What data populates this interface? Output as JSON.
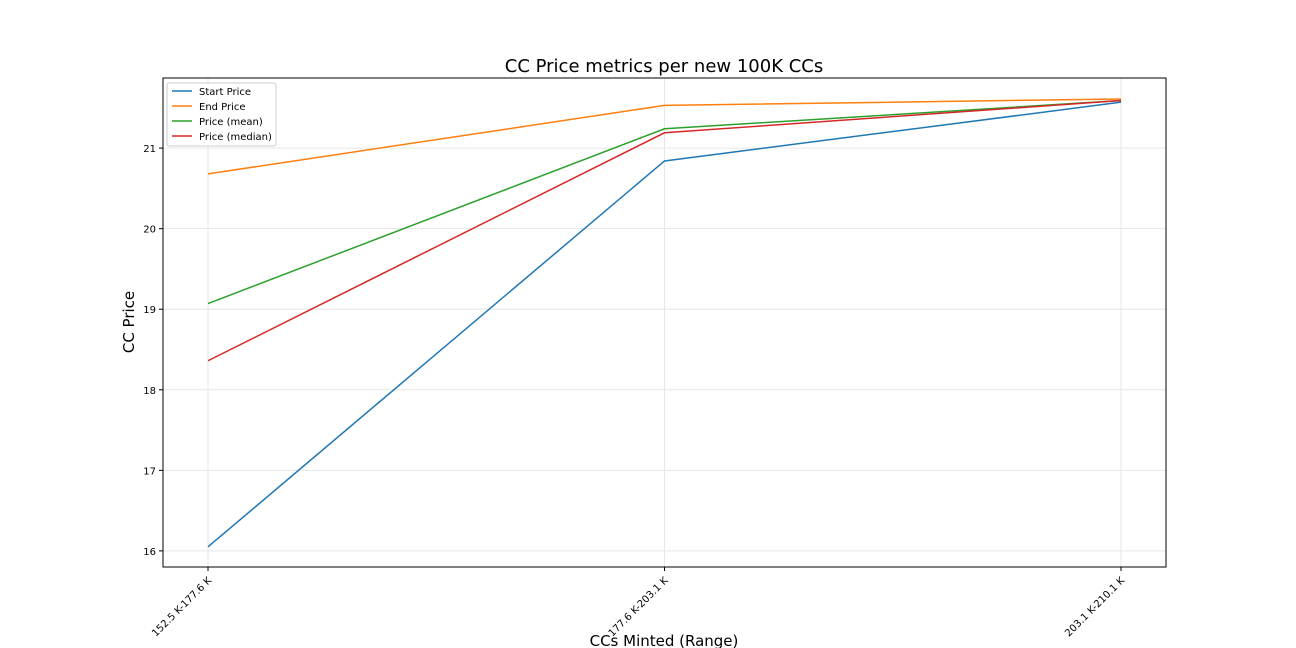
{
  "chart_data": {
    "type": "line",
    "title": "CC Price metrics per new 100K CCs",
    "xlabel": "CCs Minted (Range)",
    "ylabel": "CC Price",
    "categories": [
      "152.5 K-177.6 K",
      "177.6 K-203.1 K",
      "203.1 K-210.1 K"
    ],
    "yticks": [
      16,
      17,
      18,
      19,
      20,
      21
    ],
    "ylim": [
      15.8,
      21.87
    ],
    "grid": true,
    "legend_position": "upper-left",
    "series": [
      {
        "name": "Start Price",
        "color": "#1f77b4",
        "values": [
          16.05,
          20.84,
          21.57
        ]
      },
      {
        "name": "End Price",
        "color": "#ff7f0e",
        "values": [
          20.68,
          21.53,
          21.61
        ]
      },
      {
        "name": "Price (mean)",
        "color": "#2ca02c",
        "values": [
          19.07,
          21.24,
          21.59
        ]
      },
      {
        "name": "Price (median)",
        "color": "#d62728",
        "values": [
          18.36,
          21.19,
          21.59
        ]
      }
    ]
  }
}
